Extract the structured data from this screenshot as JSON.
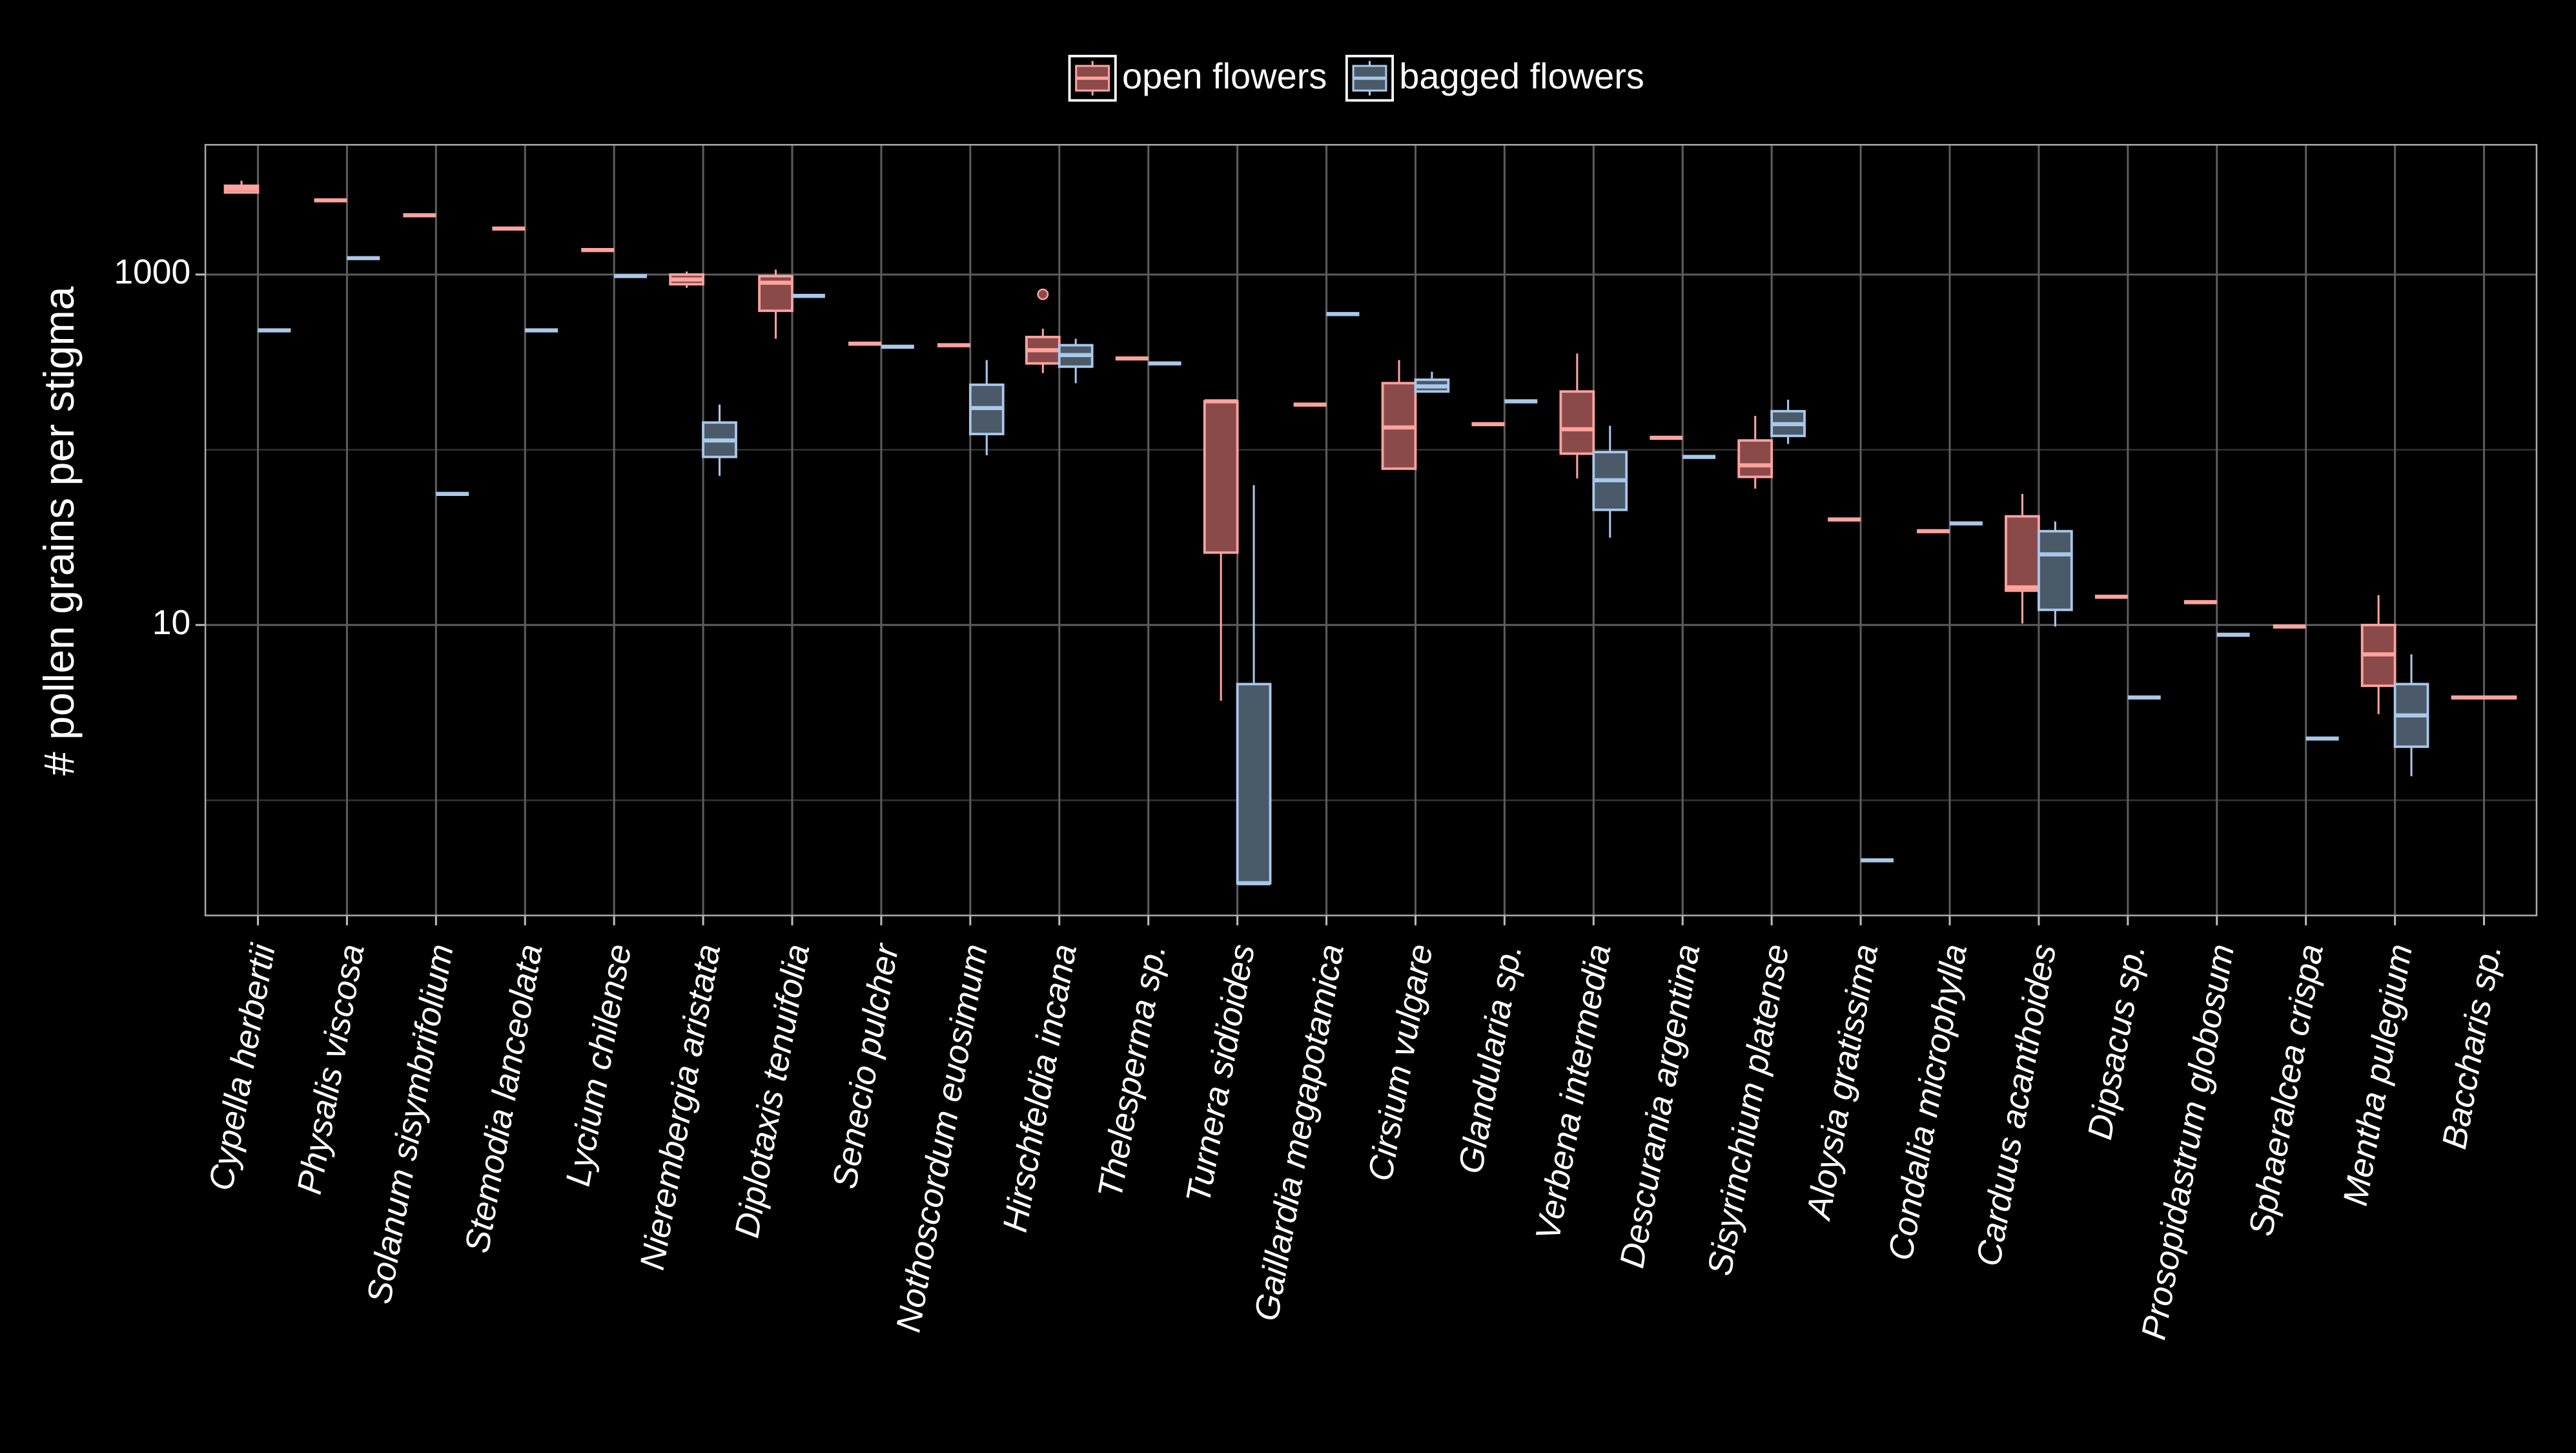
{
  "chart_data": {
    "type": "boxplot",
    "y_label": "# pollen grains per stigma",
    "log_y": true,
    "ylim": [
      0.22,
      5500
    ],
    "yticks": [
      10,
      1000
    ],
    "y_minor_grid": [
      1,
      100
    ],
    "grid": true,
    "legend_position": "top",
    "categories": [
      "Cypella herbertii",
      "Physalis viscosa",
      "Solanum sisymbrifolium",
      "Stemodia lanceolata",
      "Lycium chilense",
      "Nierembergia aristata",
      "Diplotaxis tenuifolia",
      "Senecio pulcher",
      "Nothoscordum euosimum",
      "Hirschfeldia incana",
      "Thelesperma sp.",
      "Turnera sidioides",
      "Gaillardia megapotamica",
      "Cirsium vulgare",
      "Glandularia sp.",
      "Verbena intermedia",
      "Descurania argentina",
      "Sisyrinchium platense",
      "Aloysia gratissima",
      "Condalia microphylla",
      "Carduus acanthoides",
      "Dipsacus sp.",
      "Prosopidastrum globosum",
      "Sphaeralcea crispa",
      "Mentha pulegium",
      "Baccharis sp."
    ],
    "series": [
      {
        "name": "open flowers",
        "color": "#ffa39e",
        "fill": "#8a4a4a",
        "min": [
          2940,
          2650,
          2180,
          1830,
          1380,
          840,
          430,
          403,
          395,
          274,
          332,
          3.7,
          181,
          78,
          140,
          68.6,
          117,
          60,
          40,
          34.3,
          10.2,
          14.5,
          13.5,
          9.8,
          3.1,
          3.86
        ],
        "q1": [
          2940,
          2650,
          2180,
          1830,
          1380,
          880,
          621,
          403,
          395,
          311,
          332,
          25.9,
          181,
          78,
          140,
          95,
          117,
          70,
          40,
          34.3,
          15.7,
          14.5,
          13.5,
          9.8,
          4.5,
          3.86
        ],
        "median": [
          3080,
          2650,
          2180,
          1830,
          1380,
          937,
          898,
          403,
          395,
          370,
          332,
          189,
          181,
          134,
          140,
          131,
          117,
          81.5,
          40,
          34.3,
          16.4,
          14.5,
          13.5,
          9.8,
          6.8,
          3.86
        ],
        "q3": [
          3210,
          2650,
          2180,
          1830,
          1380,
          1000,
          979,
          403,
          395,
          440,
          332,
          189,
          181,
          240,
          140,
          215,
          117,
          113,
          40,
          34.3,
          41.7,
          14.5,
          13.5,
          9.8,
          10,
          3.86
        ],
        "max": [
          3430,
          2650,
          2180,
          1830,
          1380,
          1040,
          1067,
          403,
          395,
          490,
          332,
          189,
          181,
          325,
          140,
          354,
          117,
          156,
          40,
          34.3,
          56,
          14.5,
          13.5,
          9.8,
          14.8,
          3.86
        ],
        "outliers": [
          [],
          [],
          [],
          [],
          [],
          [],
          [],
          [],
          [],
          [
            771
          ],
          [],
          [],
          [],
          [],
          [],
          [],
          [],
          [],
          [],
          [],
          [],
          [],
          [],
          [],
          [],
          []
        ]
      },
      {
        "name": "bagged flowers",
        "color": "#a9c8ea",
        "fill": "#4b5a68",
        "min": [
          480,
          1240,
          56,
          480,
          980,
          71,
          755,
          387,
          93,
          240,
          311,
          0.336,
          595,
          215,
          189,
          31.5,
          91,
          108,
          0.454,
          38,
          9.8,
          3.86,
          8.8,
          2.25,
          1.37,
          null
        ],
        "q1": [
          480,
          1240,
          56,
          480,
          980,
          91,
          755,
          387,
          123,
          298,
          311,
          0.336,
          595,
          215,
          189,
          45.4,
          91,
          120,
          0.454,
          38,
          12.2,
          3.86,
          8.8,
          2.25,
          2.02,
          null
        ],
        "median": [
          480,
          1240,
          56,
          480,
          980,
          113,
          755,
          387,
          173,
          347,
          311,
          0.336,
          595,
          230,
          189,
          67,
          91,
          140,
          0.454,
          38,
          25.3,
          3.86,
          8.8,
          2.25,
          3.05,
          null
        ],
        "q3": [
          480,
          1240,
          56,
          480,
          980,
          143,
          755,
          387,
          235,
          395,
          311,
          4.6,
          595,
          251,
          189,
          97,
          91,
          166,
          0.454,
          38,
          34.3,
          3.86,
          8.8,
          2.25,
          4.6,
          null
        ],
        "max": [
          480,
          1240,
          56,
          480,
          980,
          181,
          755,
          387,
          325,
          430,
          311,
          62.8,
          595,
          279,
          189,
          137,
          91,
          193,
          0.454,
          38,
          39,
          3.86,
          8.8,
          2.25,
          6.8,
          null
        ],
        "outliers": [
          [],
          [],
          [],
          [],
          [],
          [],
          [],
          [],
          [],
          [],
          [],
          [],
          [],
          [],
          [],
          [],
          [],
          [],
          [],
          [],
          [],
          [],
          [],
          [],
          [],
          []
        ]
      }
    ]
  }
}
